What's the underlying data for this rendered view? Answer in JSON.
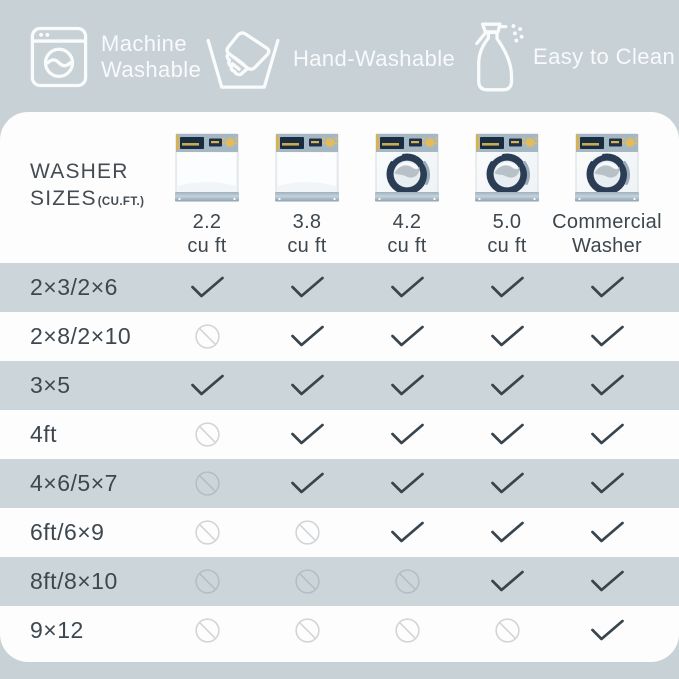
{
  "page": {
    "bg_color": "#c7d1d6",
    "card_color": "#fdfdfd",
    "alt_row_color": "#ccd6da",
    "text_color": "#3d4750",
    "check_color": "#39444c"
  },
  "badges": [
    {
      "label": "Machine\nWashable",
      "icon": "washing-machine-icon"
    },
    {
      "label": "Hand-Washable",
      "icon": "hand-wash-icon"
    },
    {
      "label": "Easy to Clean",
      "icon": "spray-bottle-icon"
    }
  ],
  "table": {
    "corner": {
      "line1": "WASHER",
      "line2": "SIZES",
      "unit": "(CU.FT.)"
    },
    "columns": [
      {
        "size": "2.2",
        "unit": "cu ft",
        "washer_type": "top-load"
      },
      {
        "size": "3.8",
        "unit": "cu ft",
        "washer_type": "top-load"
      },
      {
        "size": "4.2",
        "unit": "cu ft",
        "washer_type": "front-load"
      },
      {
        "size": "5.0",
        "unit": "cu ft",
        "washer_type": "front-load"
      },
      {
        "size": "Commercial",
        "unit": "Washer",
        "washer_type": "front-load"
      }
    ],
    "rows": [
      {
        "label": "2×3/2×6",
        "cells": [
          "yes",
          "yes",
          "yes",
          "yes",
          "yes"
        ]
      },
      {
        "label": "2×8/2×10",
        "cells": [
          "no",
          "yes",
          "yes",
          "yes",
          "yes"
        ]
      },
      {
        "label": "3×5",
        "cells": [
          "yes",
          "yes",
          "yes",
          "yes",
          "yes"
        ]
      },
      {
        "label": "4ft",
        "cells": [
          "no",
          "yes",
          "yes",
          "yes",
          "yes"
        ]
      },
      {
        "label": "4×6/5×7",
        "cells": [
          "no",
          "yes",
          "yes",
          "yes",
          "yes"
        ]
      },
      {
        "label": "6ft/6×9",
        "cells": [
          "no",
          "no",
          "yes",
          "yes",
          "yes"
        ]
      },
      {
        "label": "8ft/8×10",
        "cells": [
          "no",
          "no",
          "no",
          "yes",
          "yes"
        ]
      },
      {
        "label": "9×12",
        "cells": [
          "no",
          "no",
          "no",
          "no",
          "yes"
        ]
      }
    ]
  }
}
